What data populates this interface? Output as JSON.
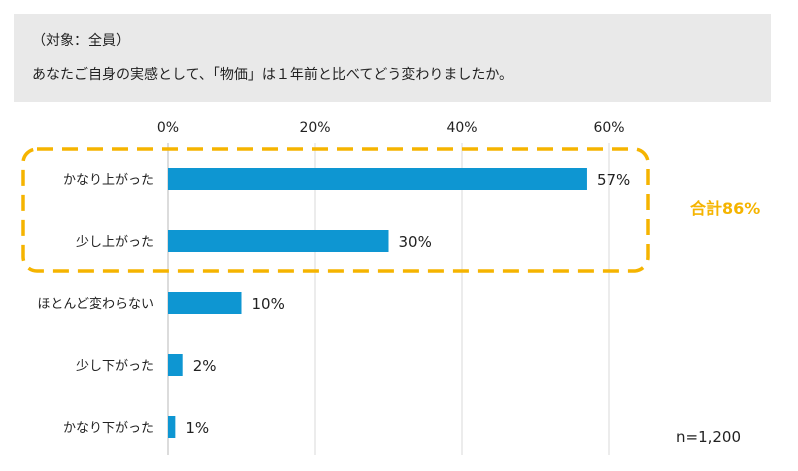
{
  "header": {
    "subtitle": "（対象：全員）",
    "question": "あなたご自身の実感として、「物価」は１年前と比べてどう変わりましたか。"
  },
  "sample_size": "n=1,200",
  "highlight": {
    "label": "合計86%",
    "color": "#f5b400"
  },
  "bar_color": "#0e96d2",
  "chart_data": {
    "type": "bar",
    "orientation": "horizontal",
    "categories": [
      "かなり上がった",
      "少し上がった",
      "ほとんど変わらない",
      "少し下がった",
      "かなり下がった"
    ],
    "values": [
      57,
      30,
      10,
      2,
      1
    ],
    "value_labels": [
      "57%",
      "30%",
      "10%",
      "2%",
      "1%"
    ],
    "x_ticks": [
      0,
      20,
      40,
      60
    ],
    "x_tick_labels": [
      "0%",
      "20%",
      "40%",
      "60%"
    ],
    "xlim": [
      0,
      65
    ],
    "grid": true,
    "axis_position": "top"
  }
}
